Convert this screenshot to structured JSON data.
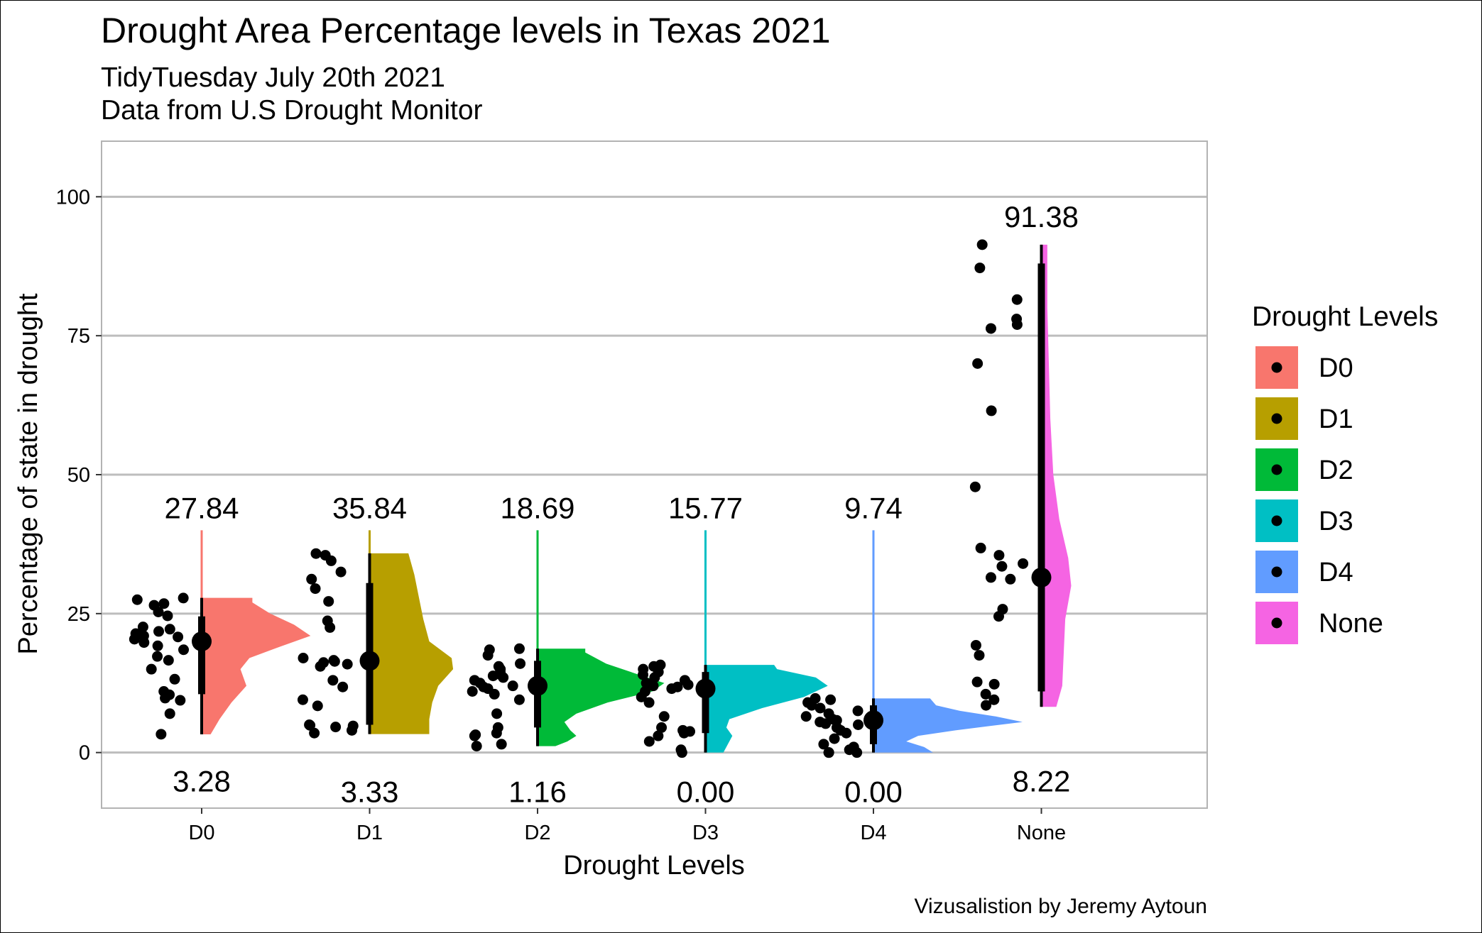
{
  "chart_data": {
    "type": "raincloud",
    "title": "Drought Area Percentage levels in Texas 2021",
    "subtitle_lines": [
      "TidyTuesday July 20th 2021",
      "Data from U.S Drought Monitor"
    ],
    "xlabel": "Drought Levels",
    "ylabel": "Percentage of state in drought",
    "caption": "Vizusalistion by Jeremy Aytoun",
    "ylim": [
      -10,
      110
    ],
    "yticks": [
      0,
      25,
      50,
      75,
      100
    ],
    "grid": "horizontal-major",
    "legend": {
      "title": "Drought Levels",
      "position": "right"
    },
    "categories": [
      "D0",
      "D1",
      "D2",
      "D3",
      "D4",
      "None"
    ],
    "series": [
      {
        "name": "D0",
        "color": "#F8766D",
        "min": 3.28,
        "max": 27.84,
        "min_label": "3.28",
        "max_label": "27.84",
        "mean": 20.0,
        "q1": 10.5,
        "q3": 24.5,
        "points": [
          27.8,
          27.5,
          26.8,
          26.5,
          25.3,
          24.6,
          22.6,
          22.2,
          21.8,
          21.4,
          21.0,
          20.8,
          20.4,
          19.8,
          19.2,
          18.5,
          17.3,
          16.6,
          15.0,
          13.2,
          11.0,
          10.4,
          9.8,
          9.4,
          7.0,
          3.3
        ],
        "density": [
          [
            3.28,
            0.06
          ],
          [
            6,
            0.12
          ],
          [
            9,
            0.2
          ],
          [
            12,
            0.3
          ],
          [
            15,
            0.26
          ],
          [
            17,
            0.32
          ],
          [
            19,
            0.52
          ],
          [
            21,
            0.73
          ],
          [
            23,
            0.62
          ],
          [
            25,
            0.46
          ],
          [
            27,
            0.34
          ],
          [
            27.84,
            0.34
          ]
        ]
      },
      {
        "name": "D1",
        "color": "#B79F00",
        "min": 3.33,
        "max": 35.84,
        "min_label": "3.33",
        "max_label": "35.84",
        "mean": 16.5,
        "q1": 5.0,
        "q3": 30.5,
        "points": [
          35.8,
          35.5,
          34.5,
          32.5,
          31.2,
          29.5,
          27.2,
          23.7,
          22.5,
          17.0,
          16.6,
          16.4,
          16.2,
          15.9,
          15.5,
          13.0,
          11.8,
          9.5,
          8.4,
          5.0,
          4.9,
          4.8,
          4.6,
          4.0,
          3.5
        ],
        "density": [
          [
            3.33,
            0.4
          ],
          [
            6,
            0.4
          ],
          [
            9,
            0.42
          ],
          [
            12,
            0.46
          ],
          [
            15,
            0.56
          ],
          [
            17,
            0.55
          ],
          [
            20,
            0.4
          ],
          [
            24,
            0.36
          ],
          [
            28,
            0.33
          ],
          [
            32,
            0.3
          ],
          [
            35.84,
            0.26
          ]
        ]
      },
      {
        "name": "D2",
        "color": "#00BA38",
        "min": 1.16,
        "max": 18.69,
        "min_label": "1.16",
        "max_label": "18.69",
        "mean": 12.0,
        "q1": 4.5,
        "q3": 16.5,
        "points": [
          18.69,
          18.5,
          17.5,
          16.0,
          15.5,
          15.0,
          14.5,
          14.0,
          13.8,
          13.5,
          13.0,
          12.5,
          12.0,
          11.8,
          11.5,
          11.0,
          10.5,
          9.5,
          7.0,
          4.5,
          3.5,
          3.2,
          3.0,
          1.5,
          1.16
        ],
        "density": [
          [
            1.16,
            0.12
          ],
          [
            2,
            0.2
          ],
          [
            3,
            0.26
          ],
          [
            4,
            0.22
          ],
          [
            5.5,
            0.18
          ],
          [
            7,
            0.26
          ],
          [
            9,
            0.47
          ],
          [
            11,
            0.77
          ],
          [
            12.5,
            0.85
          ],
          [
            14,
            0.68
          ],
          [
            16,
            0.46
          ],
          [
            18,
            0.32
          ],
          [
            18.69,
            0.32
          ]
        ]
      },
      {
        "name": "D3",
        "color": "#00BFC4",
        "min": 0.0,
        "max": 15.77,
        "min_label": "0.00",
        "max_label": "15.77",
        "mean": 11.5,
        "q1": 3.5,
        "q3": 14.5,
        "points": [
          15.77,
          15.5,
          15.0,
          14.5,
          14.0,
          13.5,
          13.0,
          12.5,
          12.2,
          12.0,
          11.8,
          11.5,
          11.0,
          10.0,
          9.0,
          6.5,
          4.5,
          4.0,
          3.8,
          3.5,
          3.0,
          2.0,
          0.5,
          0.0
        ],
        "density": [
          [
            0.0,
            0.12
          ],
          [
            1.5,
            0.15
          ],
          [
            3,
            0.18
          ],
          [
            4.5,
            0.14
          ],
          [
            6,
            0.16
          ],
          [
            8,
            0.38
          ],
          [
            10,
            0.66
          ],
          [
            12,
            0.82
          ],
          [
            13.5,
            0.74
          ],
          [
            15,
            0.48
          ],
          [
            15.77,
            0.46
          ]
        ]
      },
      {
        "name": "D4",
        "color": "#619CFF",
        "min": 0.0,
        "max": 9.74,
        "min_label": "0.00",
        "max_label": "9.74",
        "mean": 5.8,
        "q1": 1.5,
        "q3": 8.5,
        "points": [
          9.74,
          9.5,
          9.0,
          8.5,
          8.0,
          7.5,
          7.0,
          6.5,
          6.0,
          5.8,
          5.5,
          5.2,
          5.0,
          4.5,
          4.0,
          3.5,
          2.5,
          1.5,
          1.0,
          0.5,
          0.0,
          0.0,
          0.0
        ],
        "density": [
          [
            0.0,
            0.4
          ],
          [
            1,
            0.34
          ],
          [
            2,
            0.22
          ],
          [
            3,
            0.3
          ],
          [
            4,
            0.55
          ],
          [
            5.5,
            1.0
          ],
          [
            6.5,
            0.82
          ],
          [
            7.5,
            0.58
          ],
          [
            8.5,
            0.42
          ],
          [
            9.74,
            0.38
          ]
        ]
      },
      {
        "name": "None",
        "color": "#F564E3",
        "min": 8.22,
        "max": 91.38,
        "min_label": "8.22",
        "max_label": "91.38",
        "mean": 31.5,
        "q1": 11.0,
        "q3": 88.0,
        "points": [
          91.38,
          87.2,
          81.5,
          78.0,
          77.0,
          76.3,
          70.0,
          61.5,
          47.8,
          36.8,
          35.5,
          34.0,
          33.5,
          31.5,
          31.2,
          25.8,
          24.5,
          19.3,
          17.5,
          12.7,
          12.3,
          10.5,
          9.5,
          8.5
        ],
        "density": [
          [
            8.22,
            0.1
          ],
          [
            12,
            0.14
          ],
          [
            18,
            0.15
          ],
          [
            24,
            0.16
          ],
          [
            30,
            0.2
          ],
          [
            35,
            0.18
          ],
          [
            42,
            0.12
          ],
          [
            50,
            0.08
          ],
          [
            60,
            0.06
          ],
          [
            70,
            0.05
          ],
          [
            80,
            0.04
          ],
          [
            91.38,
            0.04
          ]
        ]
      }
    ]
  }
}
